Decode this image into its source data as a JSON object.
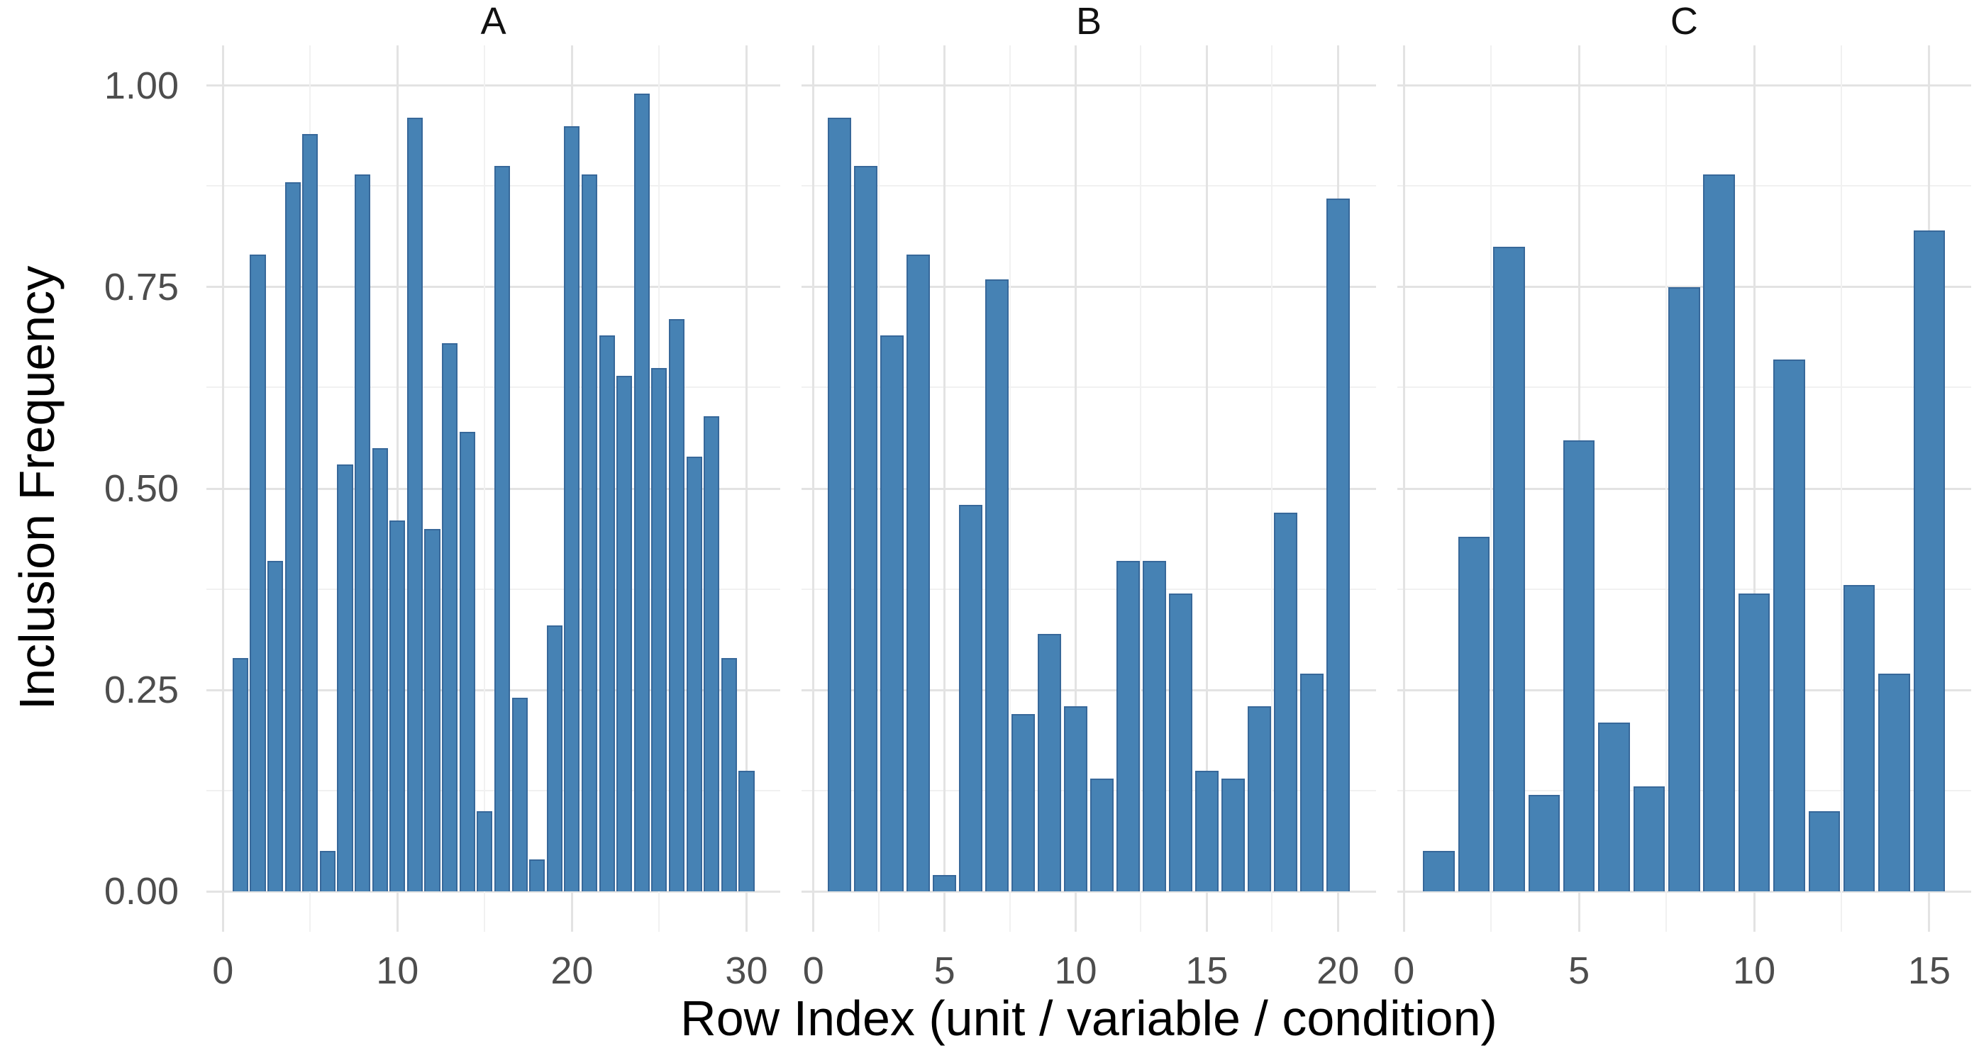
{
  "chart_data": {
    "type": "bar",
    "title": "",
    "xlabel": "Row Index (unit / variable / condition)",
    "ylabel": "Inclusion Frequency",
    "ylim": [
      0,
      1
    ],
    "y_tick_values": [
      0,
      0.25,
      0.5,
      0.75,
      1
    ],
    "y_tick_labels": [
      "0.00",
      "0.25",
      "0.50",
      "0.75",
      "1.00"
    ],
    "y_minor_step": 0.125,
    "grid": true,
    "legend_position": "none",
    "bar_fill": "#4682B4",
    "bar_edge": "#37689A",
    "grid_major_color": "#E3E3E3",
    "grid_minor_color": "#F1F1F1",
    "tick_label_color": "#4D4D4D",
    "axis_title_color": "#000000",
    "facet_label_color": "#111111",
    "x_first": 1,
    "x_step": 1,
    "bar_width": 0.9,
    "facets": [
      {
        "label": "A",
        "x_ticks": [
          0,
          10,
          20,
          30
        ],
        "x_major_step": 10,
        "x_minor_step": 5,
        "values": [
          0.29,
          0.79,
          0.41,
          0.88,
          0.94,
          0.05,
          0.53,
          0.89,
          0.55,
          0.46,
          0.96,
          0.45,
          0.68,
          0.57,
          0.1,
          0.9,
          0.24,
          0.04,
          0.33,
          0.95,
          0.89,
          0.69,
          0.64,
          0.99,
          0.65,
          0.71,
          0.54,
          0.59,
          0.29,
          0.15
        ]
      },
      {
        "label": "B",
        "x_ticks": [
          0,
          5,
          10,
          15,
          20
        ],
        "x_major_step": 5,
        "x_minor_step": 2.5,
        "values": [
          0.96,
          0.9,
          0.69,
          0.79,
          0.02,
          0.48,
          0.76,
          0.22,
          0.32,
          0.23,
          0.14,
          0.41,
          0.41,
          0.37,
          0.15,
          0.14,
          0.23,
          0.47,
          0.27,
          0.86
        ]
      },
      {
        "label": "C",
        "x_ticks": [
          0,
          5,
          10,
          15
        ],
        "x_major_step": 5,
        "x_minor_step": 2.5,
        "values": [
          0.05,
          0.44,
          0.8,
          0.12,
          0.56,
          0.21,
          0.13,
          0.75,
          0.89,
          0.37,
          0.66,
          0.1,
          0.38,
          0.27,
          0.82
        ]
      }
    ]
  }
}
